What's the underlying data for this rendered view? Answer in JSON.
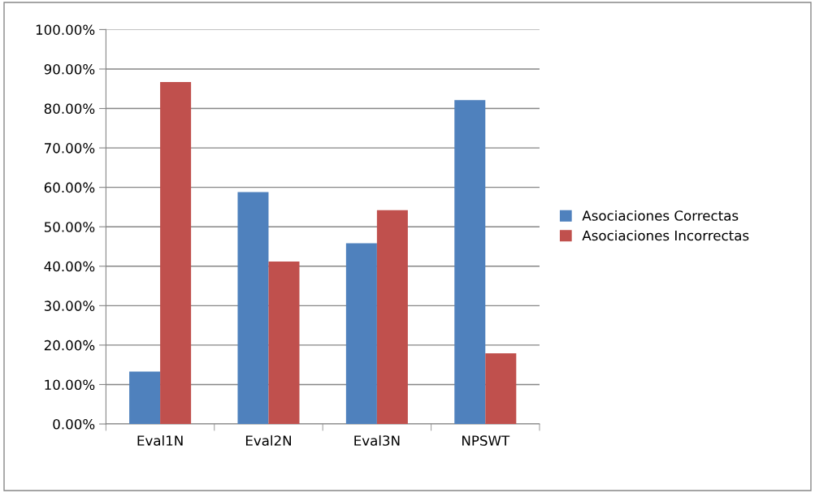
{
  "chart_data": {
    "type": "bar",
    "categories": [
      "Eval1N",
      "Eval2N",
      "Eval3N",
      "NPSWT"
    ],
    "series": [
      {
        "name": "Asociaciones Correctas",
        "color": "#4f81bd",
        "values": [
          13.3,
          58.8,
          45.8,
          82.1
        ]
      },
      {
        "name": "Asociaciones Incorrectas",
        "color": "#c0504d",
        "values": [
          86.7,
          41.2,
          54.2,
          17.9
        ]
      }
    ],
    "ylim": [
      0,
      100
    ],
    "yticks": [
      {
        "value": 0,
        "label": "0.00%"
      },
      {
        "value": 10,
        "label": "10.00%"
      },
      {
        "value": 20,
        "label": "20.00%"
      },
      {
        "value": 30,
        "label": "30.00%"
      },
      {
        "value": 40,
        "label": "40.00%"
      },
      {
        "value": 50,
        "label": "50.00%"
      },
      {
        "value": 60,
        "label": "60.00%"
      },
      {
        "value": 70,
        "label": "70.00%"
      },
      {
        "value": 80,
        "label": "80.00%"
      },
      {
        "value": 90,
        "label": "90.00%"
      },
      {
        "value": 100,
        "label": "100.00%"
      }
    ],
    "grid": "y",
    "legend": "right"
  }
}
